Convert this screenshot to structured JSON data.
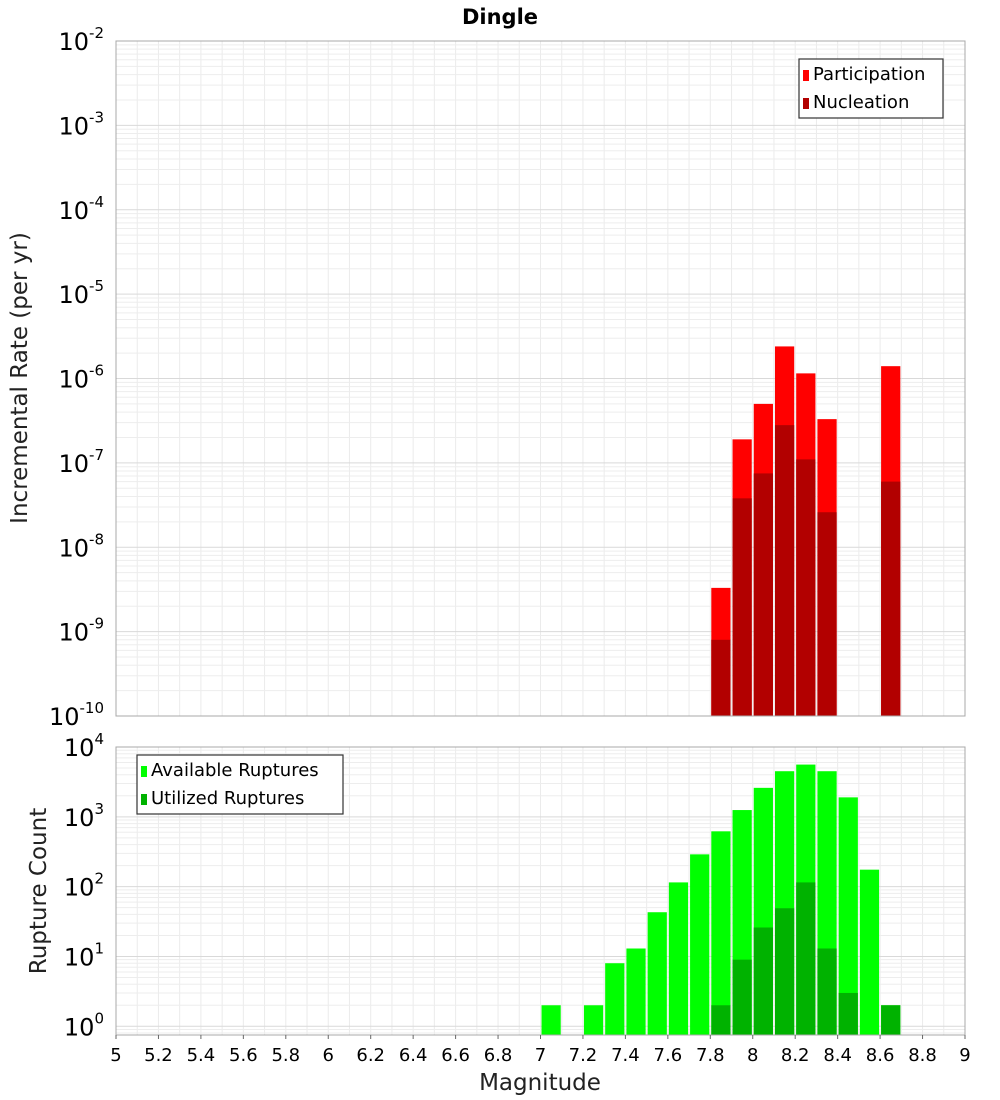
{
  "chart_data": [
    {
      "type": "bar",
      "title": "Dingle",
      "xlabel": "Magnitude",
      "ylabel": "Incremental Rate (per yr)",
      "yscale": "log",
      "xlim": [
        5,
        9
      ],
      "ylim": [
        1e-10,
        0.01
      ],
      "ytick_exponents": [
        -10,
        -9,
        -8,
        -7,
        -6,
        -5,
        -4,
        -3,
        -2
      ],
      "legend": [
        "Participation",
        "Nucleation"
      ],
      "legend_position": "top-right",
      "colors": {
        "Participation": "#ff0000",
        "Nucleation": "#b20000"
      },
      "x": [
        7.85,
        7.95,
        8.05,
        8.15,
        8.25,
        8.35,
        8.65
      ],
      "series": [
        {
          "name": "Participation",
          "values": [
            3.3e-09,
            1.9e-07,
            5e-07,
            2.4e-06,
            1.15e-06,
            3.3e-07,
            1.4e-06
          ]
        },
        {
          "name": "Nucleation",
          "values": [
            8e-10,
            3.8e-08,
            7.5e-08,
            2.8e-07,
            1.1e-07,
            2.6e-08,
            6e-08
          ]
        }
      ]
    },
    {
      "type": "bar",
      "xlabel": "Magnitude",
      "ylabel": "Rupture Count",
      "yscale": "log",
      "xlim": [
        5,
        9
      ],
      "ylim": [
        0.75,
        10000
      ],
      "ytick_exponents": [
        0,
        1,
        2,
        3,
        4
      ],
      "xticks": [
        "5",
        "5.2",
        "5.4",
        "5.6",
        "5.8",
        "6",
        "6.2",
        "6.4",
        "6.6",
        "6.8",
        "7",
        "7.2",
        "7.4",
        "7.6",
        "7.8",
        "8",
        "8.2",
        "8.4",
        "8.6",
        "8.8",
        "9"
      ],
      "legend": [
        "Available Ruptures",
        "Utilized Ruptures"
      ],
      "legend_position": "top-left",
      "colors": {
        "Available Ruptures": "#00ff00",
        "Utilized Ruptures": "#00b200"
      },
      "x": [
        7.05,
        7.25,
        7.35,
        7.45,
        7.55,
        7.65,
        7.75,
        7.85,
        7.95,
        8.05,
        8.15,
        8.25,
        8.35,
        8.45,
        8.55,
        8.65
      ],
      "series": [
        {
          "name": "Available Ruptures",
          "values": [
            2,
            2,
            8,
            13,
            43,
            115,
            290,
            620,
            1250,
            2600,
            4500,
            5600,
            4500,
            1900,
            175,
            2
          ]
        },
        {
          "name": "Utilized Ruptures",
          "values": [
            null,
            null,
            null,
            null,
            null,
            null,
            null,
            2,
            9,
            26,
            49,
            115,
            13,
            3,
            null,
            2
          ]
        }
      ]
    }
  ]
}
